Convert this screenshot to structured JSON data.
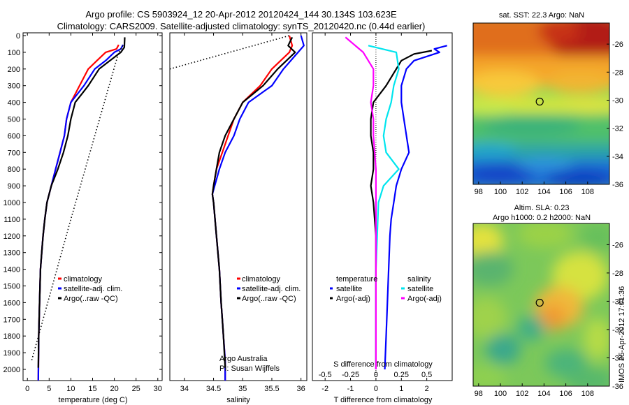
{
  "header": {
    "line1": "Argo profile: CS 5903924_12 20-Apr-2012 20120424_144 30.134S 103.623E",
    "line2": "Climatology: CARS2009. Satellite-adjusted climatology: synTS_20120420.nc (0.44d earlier)"
  },
  "colors": {
    "climatology": "#ff0000",
    "satellite": "#0000ff",
    "argo": "#000000",
    "sat_salinity": "#00e5ee",
    "argo_adj_salinity": "#ff00ff"
  },
  "credits": {
    "institution": "Argo Australia",
    "pi": "PI: Susan Wijffels",
    "stamp": "IMOS 25-Apr-2012 17:01:36"
  },
  "chart_data": [
    {
      "type": "line",
      "name": "temperature_profile",
      "xlabel": "temperature (deg C)",
      "xlim": [
        -1,
        31
      ],
      "xticks": [
        "0",
        "5",
        "10",
        "15",
        "20",
        "25",
        "30"
      ],
      "ylim": [
        0,
        2075
      ],
      "yticks": [
        "0",
        "100",
        "200",
        "300",
        "400",
        "500",
        "600",
        "700",
        "800",
        "900",
        "1000",
        "1100",
        "1200",
        "1300",
        "1400",
        "1500",
        "1600",
        "1700",
        "1800",
        "1900",
        "2000"
      ],
      "legend": [
        "climatology",
        "satellite-adj. clim.",
        "Argo(..raw -QC)"
      ],
      "series": [
        {
          "name": "climatology",
          "color": "#ff0000",
          "x": [
            21,
            20.5,
            18,
            16,
            14,
            12,
            11,
            10,
            9,
            8.5,
            7.5,
            6.5,
            5.5,
            4.5,
            4,
            3.6,
            3.3,
            3,
            2.8,
            2.6,
            2.5
          ],
          "y": [
            55,
            80,
            100,
            150,
            200,
            300,
            350,
            400,
            500,
            600,
            700,
            800,
            900,
            1000,
            1100,
            1200,
            1300,
            1400,
            1600,
            1800,
            2070
          ]
        },
        {
          "name": "satellite-adj. clim.",
          "color": "#0000ff",
          "x": [
            22,
            21.5,
            20,
            18,
            15.5,
            13,
            11.5,
            10,
            9,
            8.5,
            7.5,
            6.5,
            5.5,
            4.5,
            4,
            3.6,
            3.3,
            3,
            2.8,
            2.6,
            2.5
          ],
          "y": [
            55,
            80,
            100,
            150,
            200,
            300,
            350,
            400,
            500,
            600,
            700,
            800,
            900,
            1000,
            1100,
            1200,
            1300,
            1400,
            1600,
            1800,
            2070
          ]
        },
        {
          "name": "Argo(..raw -QC)",
          "color": "#000000",
          "x": [
            22.4,
            22.3,
            21.5,
            19,
            16.5,
            14,
            12.5,
            11,
            10,
            9.3,
            8.3,
            7,
            5.5,
            4.5,
            4,
            3.6,
            3.3,
            3,
            2.8,
            2.6,
            2.5
          ],
          "y": [
            10,
            70,
            100,
            150,
            200,
            300,
            350,
            400,
            500,
            600,
            700,
            800,
            900,
            1000,
            1100,
            1200,
            1300,
            1400,
            1600,
            1800,
            1990
          ]
        },
        {
          "name": "",
          "color": "#000000",
          "dotted": true,
          "x": [
            22,
            21,
            10,
            1
          ],
          "y": [
            60,
            100,
            1100,
            1945
          ]
        }
      ]
    },
    {
      "type": "line",
      "name": "salinity_profile",
      "xlabel": "salinity",
      "xlim": [
        33.75,
        36.1
      ],
      "xticks": [
        "34",
        "34.5",
        "35",
        "35.5",
        "36"
      ],
      "ylim": [
        0,
        2075
      ],
      "legend": [
        "climatology",
        "satellite-adj. clim.",
        "Argo(..raw -QC)"
      ],
      "series": [
        {
          "name": "climatology",
          "color": "#ff0000",
          "x": [
            35.8,
            35.85,
            35.8,
            35.5,
            35.3,
            35.0,
            34.85,
            34.75,
            34.65,
            34.55,
            34.5,
            34.48,
            34.5,
            34.55,
            34.6,
            34.63,
            34.65,
            34.67,
            34.7,
            34.7
          ],
          "y": [
            0,
            60,
            100,
            200,
            300,
            400,
            500,
            600,
            700,
            800,
            900,
            950,
            1000,
            1200,
            1400,
            1600,
            1700,
            1800,
            1950,
            2070
          ]
        },
        {
          "name": "satellite-adj. clim.",
          "color": "#0000ff",
          "x": [
            36.0,
            36.05,
            35.95,
            35.7,
            35.5,
            35.1,
            34.95,
            34.85,
            34.7,
            34.6,
            34.52,
            34.48,
            34.5,
            34.55,
            34.6,
            34.63,
            34.65,
            34.67,
            34.7,
            34.7
          ],
          "y": [
            0,
            60,
            100,
            200,
            300,
            400,
            500,
            600,
            700,
            800,
            900,
            950,
            1000,
            1200,
            1400,
            1600,
            1700,
            1800,
            1950,
            2070
          ]
        },
        {
          "name": "Argo(..raw -QC)",
          "color": "#000000",
          "x": [
            35.85,
            35.78,
            35.9,
            35.6,
            35.35,
            35.0,
            34.85,
            34.7,
            34.6,
            34.55,
            34.5,
            34.48,
            34.5,
            34.55,
            34.6,
            34.63,
            34.65,
            34.67,
            34.7
          ],
          "y": [
            10,
            60,
            100,
            200,
            300,
            400,
            500,
            600,
            700,
            800,
            900,
            950,
            1000,
            1200,
            1400,
            1600,
            1700,
            1800,
            1990
          ]
        },
        {
          "name": "",
          "color": "#000000",
          "dotted": true,
          "x": [
            33.75,
            35.8
          ],
          "y": [
            200,
            0
          ]
        }
      ]
    },
    {
      "type": "line",
      "name": "difference_profile",
      "xlabel": "T difference from climatology",
      "xlabel2": "S difference from climatology",
      "xlim": [
        -2.5,
        3
      ],
      "xticks": [
        "-2",
        "-1",
        "0",
        "1",
        "2"
      ],
      "x2ticks": [
        "-0.5",
        "-0.25",
        "0",
        "0.25",
        "0.5"
      ],
      "ylim": [
        0,
        2075
      ],
      "legend_headers": [
        "temperature",
        "salinity"
      ],
      "legend": [
        "satellite",
        "Argo(-adj)",
        "satellite",
        "Argo(-adj)"
      ],
      "series": [
        {
          "name": "temperature satellite",
          "color": "#0000ff",
          "x": [
            2.8,
            2.3,
            2.5,
            1.5,
            1.2,
            1.0,
            1.0,
            1.1,
            1.3,
            1.0,
            0.8,
            0.7,
            0.6,
            0.55,
            0.5,
            0.45,
            0.4,
            0.35
          ],
          "y": [
            60,
            80,
            100,
            150,
            200,
            300,
            400,
            500,
            700,
            800,
            900,
            1000,
            1100,
            1200,
            1400,
            1600,
            1800,
            2000
          ]
        },
        {
          "name": "temperature Argo(-adj)",
          "color": "#000000",
          "x": [
            2.2,
            1.5,
            1.0,
            0.8,
            0.4,
            -0.1,
            -0.2,
            -0.2,
            -0.1,
            -0.1,
            -0.2,
            -0.1,
            0,
            0,
            0,
            0,
            0
          ],
          "y": [
            90,
            110,
            150,
            200,
            300,
            400,
            500,
            600,
            700,
            800,
            900,
            1000,
            1200,
            1400,
            1600,
            1800,
            2000
          ]
        },
        {
          "name": "salinity satellite",
          "color": "#00e5ee",
          "x": [
            -0.3,
            0.8,
            0.9,
            0.7,
            0.6,
            0.4,
            0.3,
            0.4,
            0.9,
            0.3,
            0.1,
            0.05,
            0,
            0,
            0,
            0
          ],
          "y": [
            60,
            100,
            200,
            300,
            400,
            500,
            600,
            700,
            800,
            900,
            1000,
            1200,
            1400,
            1600,
            1800,
            2000
          ]
        },
        {
          "name": "salinity Argo(-adj)",
          "color": "#ff00ff",
          "x": [
            -1.2,
            -0.5,
            -0.1,
            -0.1,
            -0.2,
            -0.1,
            -0.1,
            0,
            0,
            0,
            0,
            0,
            0
          ],
          "y": [
            10,
            100,
            200,
            300,
            400,
            500,
            600,
            800,
            1000,
            1200,
            1400,
            1600,
            2000
          ]
        }
      ]
    },
    {
      "type": "heatmap",
      "name": "sst_map",
      "title": "sat. SST: 22.3 Argo: NaN",
      "xticks": [
        "98",
        "100",
        "102",
        "104",
        "106",
        "108"
      ],
      "yticks": [
        "-26",
        "-28",
        "-30",
        "-32",
        "-34",
        "-36"
      ],
      "xlim": [
        97.5,
        110
      ],
      "ylim": [
        -36,
        -24.5
      ],
      "marker": {
        "lon": 103.6,
        "lat": -30.1
      }
    },
    {
      "type": "heatmap",
      "name": "sla_map",
      "title": "Altim. SLA: 0.23",
      "subtitle": "Argo h1000: 0.2 h2000: NaN",
      "xticks": [
        "98",
        "100",
        "102",
        "104",
        "106",
        "108"
      ],
      "yticks": [
        "-26",
        "-28",
        "-30",
        "-32",
        "-34",
        "-36"
      ],
      "xlim": [
        97.5,
        110
      ],
      "ylim": [
        -36,
        -24.5
      ],
      "marker": {
        "lon": 103.6,
        "lat": -30.1
      }
    }
  ]
}
